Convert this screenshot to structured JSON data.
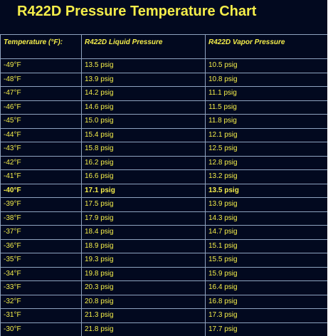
{
  "title": "R422D Pressure Temperature Chart",
  "headers": {
    "temperature": "Temperature (°F):",
    "liquid": "R422D Liquid Pressure",
    "vapor": "R422D Vapor Pressure"
  },
  "rows": [
    {
      "temp": "-49°F",
      "liquid": "13.5 psig",
      "vapor": "10.5 psig"
    },
    {
      "temp": "-48°F",
      "liquid": "13.9 psig",
      "vapor": "10.8 psig"
    },
    {
      "temp": "-47°F",
      "liquid": "14.2 psig",
      "vapor": "11.1 psig"
    },
    {
      "temp": "-46°F",
      "liquid": "14.6 psig",
      "vapor": "11.5 psig"
    },
    {
      "temp": "-45°F",
      "liquid": "15.0 psig",
      "vapor": "11.8 psig"
    },
    {
      "temp": "-44°F",
      "liquid": "15.4 psig",
      "vapor": "12.1 psig"
    },
    {
      "temp": "-43°F",
      "liquid": "15.8 psig",
      "vapor": "12.5 psig"
    },
    {
      "temp": "-42°F",
      "liquid": "16.2 psig",
      "vapor": "12.8 psig"
    },
    {
      "temp": "-41°F",
      "liquid": "16.6 psig",
      "vapor": "13.2 psig"
    },
    {
      "temp": "-40°F",
      "liquid": "17.1 psig",
      "vapor": "13.5 psig"
    },
    {
      "temp": "-39°F",
      "liquid": "17.5 psig",
      "vapor": "13.9 psig"
    },
    {
      "temp": "-38°F",
      "liquid": "17.9 psig",
      "vapor": "14.3 psig"
    },
    {
      "temp": "-37°F",
      "liquid": "18.4 psig",
      "vapor": "14.7 psig"
    },
    {
      "temp": "-36°F",
      "liquid": "18.9 psig",
      "vapor": "15.1 psig"
    },
    {
      "temp": "-35°F",
      "liquid": "19.3 psig",
      "vapor": "15.5 psig"
    },
    {
      "temp": "-34°F",
      "liquid": "19.8 psig",
      "vapor": "15.9 psig"
    },
    {
      "temp": "-33°F",
      "liquid": "20.3 psig",
      "vapor": "16.4 psig"
    },
    {
      "temp": "-32°F",
      "liquid": "20.8 psig",
      "vapor": "16.8 psig"
    },
    {
      "temp": "-31°F",
      "liquid": "21.3 psig",
      "vapor": "17.3 psig"
    },
    {
      "temp": "-30°F",
      "liquid": "21.8 psig",
      "vapor": "17.7 psig"
    }
  ],
  "emphasized_temp": "-40°F",
  "colors": {
    "background": "#02091f",
    "text": "#f4ed4a",
    "grid": "#8fa3bf"
  }
}
